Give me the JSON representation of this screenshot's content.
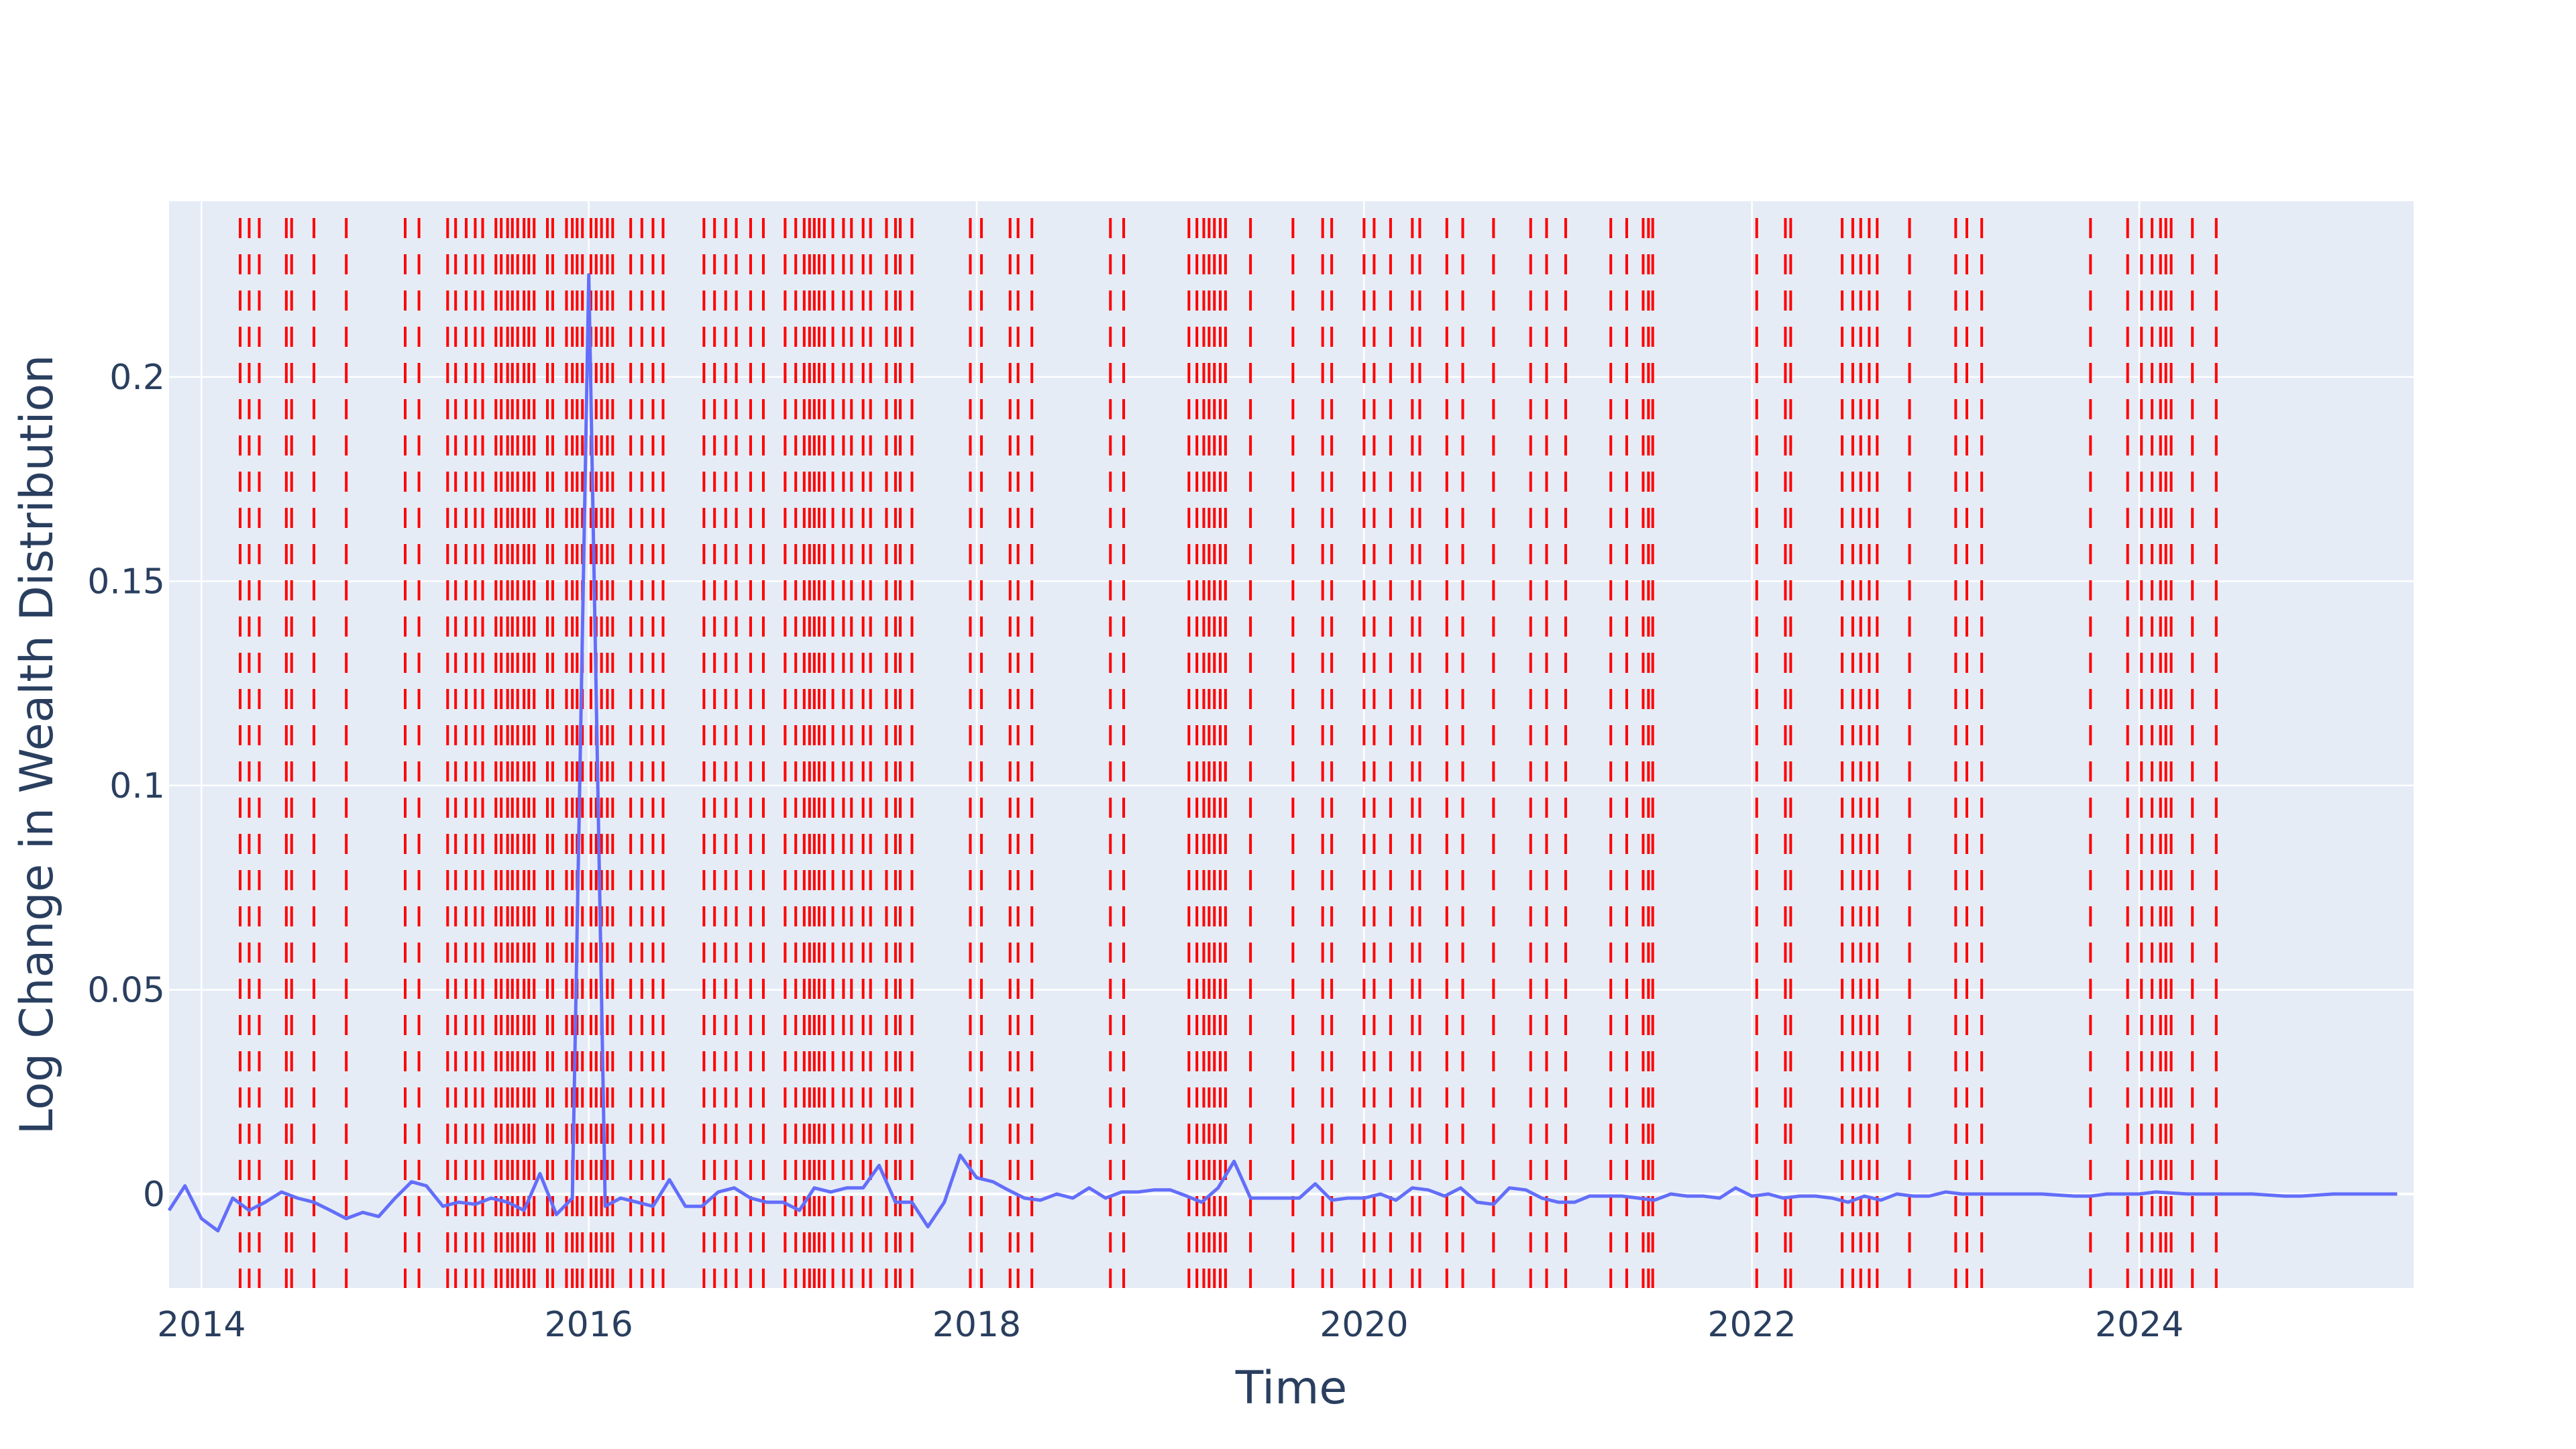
{
  "chart_data": {
    "type": "line",
    "title": "",
    "xlabel": "Time",
    "ylabel": "Log Change in Wealth Distribution",
    "x_ticks": [
      "2014",
      "2016",
      "2018",
      "2020",
      "2022",
      "2024"
    ],
    "y_ticks": [
      "0",
      "0.05",
      "0.1",
      "0.15",
      "0.2"
    ],
    "xlim": [
      "2013-11-01",
      "2025-06-01"
    ],
    "ylim": [
      -0.023,
      0.243
    ],
    "grid": true,
    "legend": "none",
    "colors": {
      "line": "#636efa",
      "vlines": "#ff0000",
      "plot_bg": "#e5ecf6",
      "grid": "#ffffff",
      "text": "#2a3f5f"
    },
    "series": [
      {
        "x": [
          "2013-11-01",
          "2013-12-01",
          "2014-01-01",
          "2014-02-01",
          "2014-03-01",
          "2014-04-01",
          "2014-05-01",
          "2014-06-01",
          "2014-07-01",
          "2014-08-01",
          "2014-09-01",
          "2014-10-01",
          "2014-11-01",
          "2014-12-01",
          "2015-01-01",
          "2015-02-01",
          "2015-03-01",
          "2015-04-01",
          "2015-05-01",
          "2015-06-01",
          "2015-07-01",
          "2015-08-01",
          "2015-09-01",
          "2015-10-01",
          "2015-11-01",
          "2015-12-01",
          "2016-01-01",
          "2016-02-01",
          "2016-03-01",
          "2016-04-01",
          "2016-05-01",
          "2016-06-01",
          "2016-07-01",
          "2016-08-01",
          "2016-09-01",
          "2016-10-01",
          "2016-11-01",
          "2016-12-01",
          "2017-01-01",
          "2017-02-01",
          "2017-03-01",
          "2017-04-01",
          "2017-05-01",
          "2017-06-01",
          "2017-07-01",
          "2017-08-01",
          "2017-09-01",
          "2017-10-01",
          "2017-11-01",
          "2017-12-01",
          "2018-01-01",
          "2018-02-01",
          "2018-03-01",
          "2018-04-01",
          "2018-05-01",
          "2018-06-01",
          "2018-07-01",
          "2018-08-01",
          "2018-09-01",
          "2018-10-01",
          "2018-11-01",
          "2018-12-01",
          "2019-01-01",
          "2019-02-01",
          "2019-03-01",
          "2019-04-01",
          "2019-05-01",
          "2019-06-01",
          "2019-07-01",
          "2019-08-01",
          "2019-09-01",
          "2019-10-01",
          "2019-11-01",
          "2019-12-01",
          "2020-01-01",
          "2020-02-01",
          "2020-03-01",
          "2020-04-01",
          "2020-05-01",
          "2020-06-01",
          "2020-07-01",
          "2020-08-01",
          "2020-09-01",
          "2020-10-01",
          "2020-11-01",
          "2020-12-01",
          "2021-01-01",
          "2021-02-01",
          "2021-03-01",
          "2021-04-01",
          "2021-05-01",
          "2021-06-01",
          "2021-07-01",
          "2021-08-01",
          "2021-09-01",
          "2021-10-01",
          "2021-11-01",
          "2021-12-01",
          "2022-01-01",
          "2022-02-01",
          "2022-03-01",
          "2022-04-01",
          "2022-05-01",
          "2022-06-01",
          "2022-07-01",
          "2022-08-01",
          "2022-09-01",
          "2022-10-01",
          "2022-11-01",
          "2022-12-01",
          "2023-01-01",
          "2023-02-01",
          "2023-03-01",
          "2023-05-01",
          "2023-07-01",
          "2023-09-01",
          "2023-10-01",
          "2023-11-01",
          "2023-12-01",
          "2024-01-01",
          "2024-02-01",
          "2024-04-01",
          "2024-06-01",
          "2024-08-01",
          "2024-10-01",
          "2024-11-01",
          "2025-01-01",
          "2025-03-01",
          "2025-05-01"
        ],
        "y": [
          -0.004,
          0.002,
          -0.006,
          -0.009,
          -0.001,
          -0.004,
          -0.002,
          0.0005,
          -0.001,
          -0.002,
          -0.004,
          -0.006,
          -0.0045,
          -0.0055,
          -0.001,
          0.003,
          0.002,
          -0.003,
          -0.002,
          -0.0025,
          -0.001,
          -0.002,
          -0.004,
          0.005,
          -0.005,
          -0.001,
          0.225,
          -0.003,
          -0.001,
          -0.002,
          -0.003,
          0.0035,
          -0.003,
          -0.003,
          0.0005,
          0.0015,
          -0.001,
          -0.002,
          -0.002,
          -0.004,
          0.0015,
          0.0005,
          0.0015,
          0.0015,
          0.007,
          -0.002,
          -0.002,
          -0.008,
          -0.002,
          0.0095,
          0.004,
          0.003,
          0.001,
          -0.001,
          -0.0015,
          0.0,
          -0.001,
          0.0015,
          -0.001,
          0.0005,
          0.0005,
          0.001,
          0.001,
          -0.0005,
          -0.002,
          0.0015,
          0.008,
          -0.001,
          -0.001,
          -0.001,
          -0.001,
          0.0025,
          -0.0015,
          -0.001,
          -0.001,
          0.0,
          -0.0015,
          0.0015,
          0.001,
          -0.0005,
          0.0015,
          -0.002,
          -0.0025,
          0.0015,
          0.001,
          -0.001,
          -0.002,
          -0.002,
          -0.0005,
          -0.0005,
          -0.0005,
          -0.001,
          -0.0015,
          0.0,
          -0.0005,
          -0.0005,
          -0.001,
          0.0015,
          -0.0005,
          0.0,
          -0.001,
          -0.0005,
          -0.0005,
          -0.001,
          -0.002,
          -0.0005,
          -0.0015,
          0.0,
          -0.0005,
          -0.0005,
          0.0005,
          0.0,
          0.0,
          0.0,
          0.0,
          -0.0005,
          -0.0005,
          0.0,
          0.0,
          0.0,
          0.0005,
          0.0,
          0.0,
          0.0,
          -0.0005,
          -0.0005,
          0.0,
          0.0,
          0.0
        ]
      }
    ],
    "vertical_lines": [
      "2014-03-15",
      "2014-04-01",
      "2014-04-20",
      "2014-06-10",
      "2014-06-20",
      "2014-08-01",
      "2014-10-01",
      "2015-01-20",
      "2015-02-15",
      "2015-04-10",
      "2015-04-25",
      "2015-05-15",
      "2015-06-01",
      "2015-06-15",
      "2015-07-10",
      "2015-07-20",
      "2015-08-01",
      "2015-08-10",
      "2015-08-20",
      "2015-09-01",
      "2015-09-10",
      "2015-09-20",
      "2015-10-15",
      "2015-10-25",
      "2015-11-20",
      "2015-12-01",
      "2015-12-10",
      "2015-12-20",
      "2016-01-05",
      "2016-01-15",
      "2016-01-25",
      "2016-02-05",
      "2016-02-15",
      "2016-03-20",
      "2016-04-10",
      "2016-05-01",
      "2016-05-20",
      "2016-08-05",
      "2016-08-25",
      "2016-09-15",
      "2016-10-05",
      "2016-11-01",
      "2016-11-25",
      "2017-01-05",
      "2017-01-25",
      "2017-02-10",
      "2017-02-20",
      "2017-03-01",
      "2017-03-10",
      "2017-03-20",
      "2017-04-05",
      "2017-04-25",
      "2017-05-10",
      "2017-06-01",
      "2017-06-15",
      "2017-07-15",
      "2017-08-01",
      "2017-08-10",
      "2017-09-01",
      "2017-12-20",
      "2018-01-10",
      "2018-03-05",
      "2018-03-20",
      "2018-04-15",
      "2018-09-10",
      "2018-10-05",
      "2019-02-05",
      "2019-02-20",
      "2019-03-05",
      "2019-03-15",
      "2019-03-25",
      "2019-04-05",
      "2019-04-15",
      "2019-06-01",
      "2019-08-20",
      "2019-10-15",
      "2019-11-01",
      "2020-01-01",
      "2020-01-20",
      "2020-02-20",
      "2020-04-01",
      "2020-04-15",
      "2020-06-05",
      "2020-07-05",
      "2020-09-01",
      "2020-11-10",
      "2020-12-10",
      "2021-01-15",
      "2021-04-10",
      "2021-05-10",
      "2021-06-10",
      "2021-06-20",
      "2021-06-28",
      "2022-01-10",
      "2022-03-05",
      "2022-03-15",
      "2022-06-20",
      "2022-07-10",
      "2022-07-25",
      "2022-08-10",
      "2022-08-25",
      "2022-10-25",
      "2023-01-20",
      "2023-02-10",
      "2023-03-10",
      "2023-10-01",
      "2023-12-10",
      "2024-01-05",
      "2024-01-25",
      "2024-02-10",
      "2024-02-20",
      "2024-03-01",
      "2024-04-10",
      "2024-05-25"
    ]
  }
}
